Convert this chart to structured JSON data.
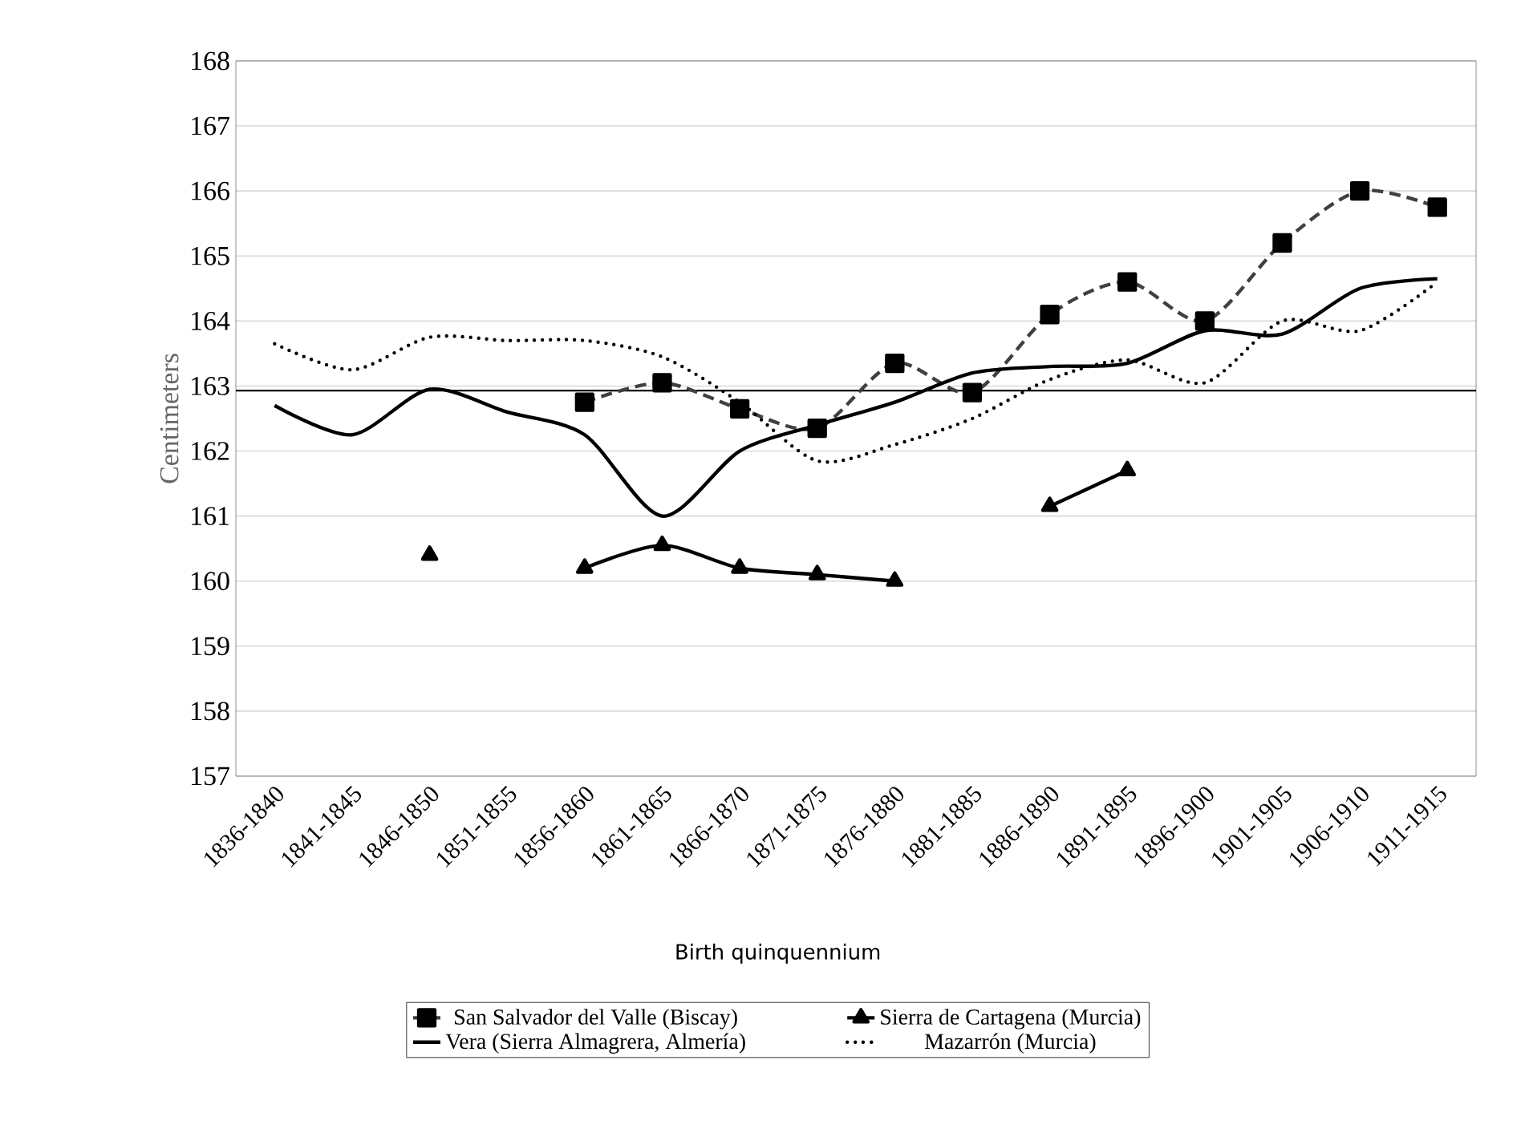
{
  "chart_data": {
    "type": "line",
    "xlabel": "Birth quinquennium",
    "ylabel": "Centimeters",
    "categories": [
      "1836-1840",
      "1841-1845",
      "1846-1850",
      "1851-1855",
      "1856-1860",
      "1861-1865",
      "1866-1870",
      "1871-1875",
      "1876-1880",
      "1881-1885",
      "1886-1890",
      "1891-1895",
      "1896-1900",
      "1901-1905",
      "1906-1910",
      "1911-1915"
    ],
    "series": [
      {
        "name": "San Salvador del Valle (Biscay)",
        "color": "#404040",
        "marker": "square",
        "line_style": "dashed",
        "values": [
          null,
          null,
          null,
          null,
          162.75,
          163.05,
          162.65,
          162.35,
          163.35,
          162.9,
          164.1,
          164.6,
          164.0,
          165.2,
          166.0,
          165.75
        ]
      },
      {
        "name": "Sierra de Cartagena (Murcia)",
        "color": "#000000",
        "marker": "triangle",
        "line_style": "solid",
        "values": [
          null,
          null,
          160.4,
          null,
          160.2,
          160.55,
          160.2,
          160.1,
          160.0,
          null,
          161.15,
          161.7,
          null,
          null,
          null,
          null
        ]
      },
      {
        "name": "Vera (Sierra Almagrera, Almería)",
        "color": "#000000",
        "marker": "none",
        "line_style": "solid",
        "values": [
          162.7,
          162.25,
          162.95,
          162.6,
          162.25,
          161.0,
          162.0,
          162.4,
          162.75,
          163.2,
          163.3,
          163.35,
          163.85,
          163.8,
          164.5,
          164.65
        ]
      },
      {
        "name": "Mazarrón (Murcia)",
        "color": "#000000",
        "marker": "none",
        "line_style": "dotted",
        "values": [
          163.65,
          163.25,
          163.75,
          163.7,
          163.7,
          163.45,
          162.75,
          161.85,
          162.1,
          162.5,
          163.1,
          163.4,
          163.05,
          164.0,
          163.85,
          164.6
        ]
      }
    ],
    "ref_lines": [
      {
        "axis": "y",
        "value": 162.93,
        "color": "#000000"
      }
    ],
    "ylim": [
      157,
      168
    ],
    "yticks": [
      157,
      158,
      159,
      160,
      161,
      162,
      163,
      164,
      165,
      166,
      167,
      168
    ],
    "grid": "y",
    "legend": "bottom"
  }
}
